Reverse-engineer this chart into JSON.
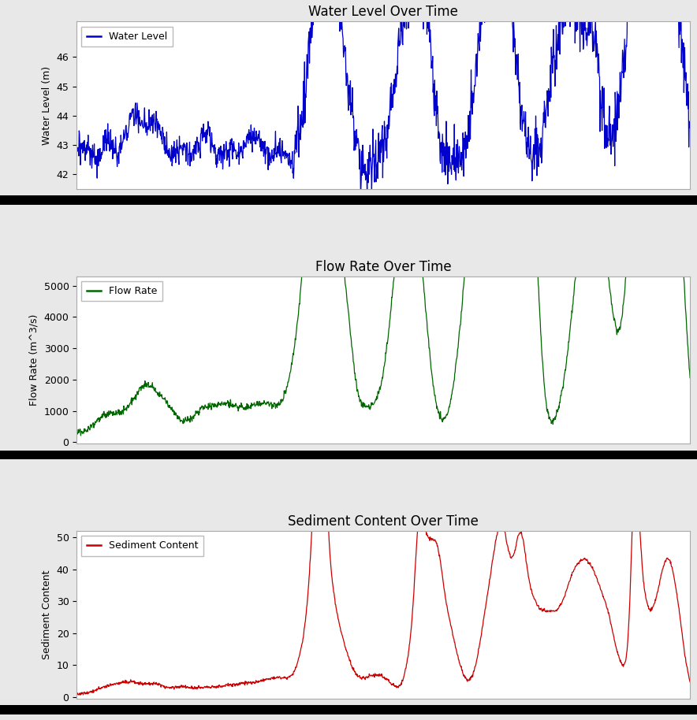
{
  "titles": [
    "Water Level Over Time",
    "Flow Rate Over Time",
    "Sediment Content Over Time"
  ],
  "ylabels": [
    "Water Level (m)",
    "Flow Rate (m^3/s)",
    "Sediment Content"
  ],
  "line_colors": [
    "#0000cc",
    "#006600",
    "#cc0000"
  ],
  "legend_labels": [
    "Water Level",
    "Flow Rate",
    "Sediment Content"
  ],
  "water_ylim": [
    41.5,
    47.2
  ],
  "flow_ylim": [
    -50,
    5300
  ],
  "sediment_ylim": [
    -0.5,
    52
  ],
  "water_yticks": [
    42,
    43,
    44,
    45,
    46
  ],
  "flow_yticks": [
    0,
    1000,
    2000,
    3000,
    4000,
    5000
  ],
  "sediment_yticks": [
    0,
    10,
    20,
    30,
    40,
    50
  ],
  "fig_background": "#e8e8e8",
  "plot_background": "white",
  "title_fontsize": 12,
  "label_fontsize": 9,
  "legend_fontsize": 9,
  "n_points": 1500,
  "linewidth": 0.9
}
